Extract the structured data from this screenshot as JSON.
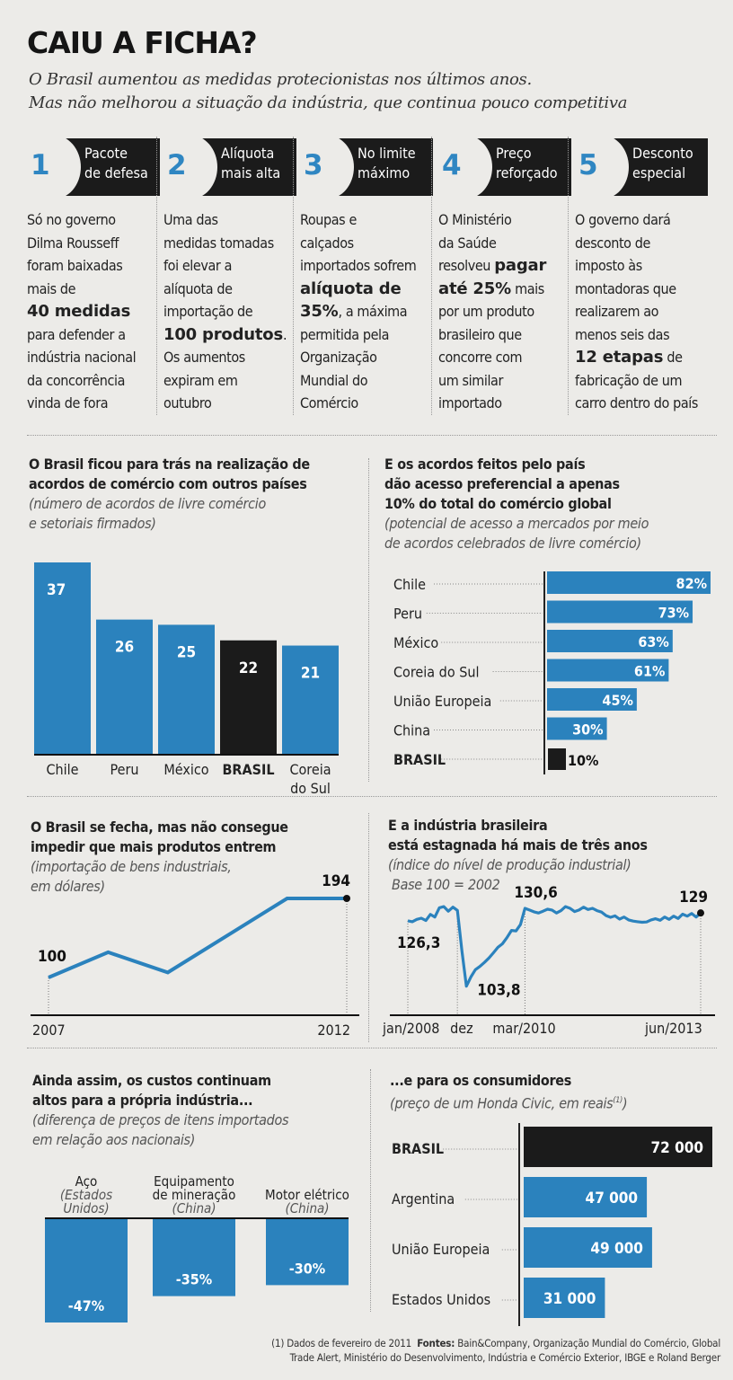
{
  "header": {
    "title": "CAIU A FICHA?",
    "subtitle_line1": "O Brasil aumentou as medidas protecionistas nos últimos anos.",
    "subtitle_line2": "Mas não melhorou a situação da indústria, que continua pouco competitiva"
  },
  "steps": [
    {
      "num": "1",
      "title1": "Pacote",
      "title2": "de defesa",
      "text": [
        "Só no governo",
        "Dilma Rousseff",
        "foram baixadas",
        "mais de",
        "<b>40 medidas</b>",
        "para defender a",
        "indústria nacional",
        "da concorrência",
        "vinda de fora"
      ]
    },
    {
      "num": "2",
      "title1": "Alíquota",
      "title2": "mais alta",
      "text": [
        "Uma das",
        "medidas tomadas",
        "foi elevar a",
        "alíquota de",
        "importação de",
        "<b>100 produtos</b>.",
        "Os aumentos",
        "expiram em",
        "outubro"
      ]
    },
    {
      "num": "3",
      "title1": "No limite",
      "title2": "máximo",
      "text": [
        "Roupas e",
        "calçados",
        "importados sofrem",
        "<b>alíquota de</b>",
        "<b>35%</b>, a máxima",
        "permitida pela",
        "Organização",
        "Mundial do",
        "Comércio"
      ]
    },
    {
      "num": "4",
      "title1": "Preço",
      "title2": "reforçado",
      "text": [
        "O Ministério",
        "da Saúde",
        "resolveu <b>pagar</b>",
        "<b>até 25%</b> mais",
        "por um produto",
        "brasileiro que",
        "concorre com",
        "um similar",
        "importado"
      ]
    },
    {
      "num": "5",
      "title1": "Desconto",
      "title2": "especial",
      "text": [
        "O governo dará",
        "desconto de",
        "imposto às",
        "montadoras que",
        "realizarem ao",
        "menos seis das",
        "<b>12 etapas</b> de",
        "fabricação de um",
        "carro dentro do país"
      ]
    }
  ],
  "colors": {
    "blue": "#2b82bd",
    "dark": "#1b1b1b",
    "background": "#ecebe8"
  },
  "chart_data": [
    {
      "id": "acordos",
      "type": "bar",
      "title": "O Brasil ficou para trás na realização de acordos de comércio com outros países",
      "title_lines": [
        "O Brasil ficou para trás na realização de",
        "acordos de comércio com outros países"
      ],
      "subtitle_lines": [
        "(número de acordos de livre comércio",
        "e setoriais firmados)"
      ],
      "categories": [
        "Chile",
        "Peru",
        "México",
        "BRASIL",
        "Coreia do Sul"
      ],
      "category_lines": [
        [
          "Chile"
        ],
        [
          "Peru"
        ],
        [
          "México"
        ],
        [
          "BRASIL"
        ],
        [
          "Coreia",
          "do Sul"
        ]
      ],
      "values": [
        37,
        26,
        25,
        22,
        21
      ],
      "highlight": "BRASIL",
      "ylim": [
        0,
        37
      ]
    },
    {
      "id": "acesso",
      "type": "bar",
      "orientation": "horizontal",
      "title": "E os acordos feitos pelo país dão acesso preferencial a apenas 10% do total do comércio global",
      "title_lines": [
        "E os acordos feitos pelo país",
        "dão acesso preferencial a apenas",
        "10% do total do comércio global"
      ],
      "subtitle_lines": [
        "(potencial de acesso a mercados por meio",
        "de acordos celebrados de livre comércio)"
      ],
      "categories": [
        "Chile",
        "Peru",
        "México",
        "Coreia do Sul",
        "União Europeia",
        "China",
        "BRASIL"
      ],
      "values": [
        82,
        73,
        63,
        61,
        45,
        30,
        10
      ],
      "unit": "%",
      "highlight": "BRASIL",
      "xlim": [
        0,
        82
      ]
    },
    {
      "id": "importacao",
      "type": "line",
      "title": "O Brasil se fecha, mas não consegue impedir que mais produtos entrem",
      "title_lines": [
        "O Brasil se fecha, mas não consegue",
        "impedir que mais produtos entrem"
      ],
      "subtitle_lines": [
        "(importação de bens industriais,",
        "em dólares)"
      ],
      "x": [
        2007,
        2008,
        2009,
        2010,
        2011,
        2012
      ],
      "values": [
        100,
        130,
        106,
        150,
        194,
        194
      ],
      "labeled_points": [
        {
          "x": 2007,
          "label": "100"
        },
        {
          "x": 2012,
          "label": "194"
        }
      ],
      "x_tick_labels": [
        "2007",
        "2012"
      ],
      "ylim": [
        80,
        200
      ]
    },
    {
      "id": "producao",
      "type": "line",
      "title": "E a indústria brasileira está estagnada há mais de três anos",
      "title_lines": [
        "E a indústria brasileira",
        "está estagnada há mais de três anos"
      ],
      "subtitle_lines": [
        "(índice do nível de produção industrial)",
        "Base 100 = 2002"
      ],
      "x_tick_labels": [
        "jan/2008",
        "dez",
        "mar/2010",
        "jun/2013"
      ],
      "x_tick_index": [
        0,
        11,
        26,
        65
      ],
      "values": [
        126.3,
        126.0,
        126.8,
        127.2,
        126.4,
        128.5,
        127.6,
        130.8,
        131.2,
        129.6,
        131.0,
        129.9,
        116.0,
        103.8,
        107.0,
        109.5,
        110.6,
        112.0,
        113.5,
        115.3,
        117.2,
        118.4,
        120.5,
        123.0,
        122.8,
        125.0,
        130.6,
        130.0,
        129.4,
        129.0,
        129.6,
        130.3,
        130.0,
        129.0,
        129.8,
        131.2,
        130.6,
        129.5,
        130.0,
        131.0,
        130.2,
        130.6,
        129.8,
        129.3,
        128.1,
        127.5,
        128.0,
        126.9,
        127.6,
        126.6,
        126.2,
        126.0,
        125.8,
        125.9,
        126.6,
        127.0,
        126.5,
        127.6,
        126.8,
        127.9,
        127.1,
        128.6,
        127.9,
        128.8,
        127.6,
        129.0
      ],
      "labeled_points": [
        {
          "index": 0,
          "label": "126,3"
        },
        {
          "index": 13,
          "label": "103,8"
        },
        {
          "index": 26,
          "label": "130,6"
        },
        {
          "index": 65,
          "label": "129"
        }
      ],
      "ylim": [
        100,
        134
      ]
    },
    {
      "id": "custos",
      "type": "bar",
      "title": "Ainda assim, os custos continuam altos para a própria indústria...",
      "title_lines": [
        "Ainda assim, os custos continuam",
        "altos para a própria indústria..."
      ],
      "subtitle_lines": [
        "(diferença de preços de itens importados",
        "em relação aos nacionais)"
      ],
      "categories": [
        "Aço (Estados Unidos)",
        "Equipamento de mineração (China)",
        "Motor elétrico (China)"
      ],
      "category_lines": [
        {
          "main": [
            "Aço"
          ],
          "sub": [
            "(Estados",
            "Unidos)"
          ]
        },
        {
          "main": [
            "Equipamento",
            "de mineração"
          ],
          "sub": [
            "(China)"
          ]
        },
        {
          "main": [
            "Motor elétrico"
          ],
          "sub": [
            "(China)"
          ]
        }
      ],
      "values": [
        -47,
        -35,
        -30
      ],
      "unit": "%",
      "ylim": [
        -47,
        0
      ]
    },
    {
      "id": "civic",
      "type": "bar",
      "orientation": "horizontal",
      "title": "...e para os consumidores",
      "title_lines": [
        "...e para os consumidores"
      ],
      "subtitle_lines": [
        "(preço de um Honda Civic, em reais",
        "(1)",
        ")"
      ],
      "categories": [
        "BRASIL",
        "Argentina",
        "União Europeia",
        "Estados Unidos"
      ],
      "values": [
        72000,
        47000,
        49000,
        31000
      ],
      "value_labels": [
        "72 000",
        "47 000",
        "49 000",
        "31 000"
      ],
      "highlight": "BRASIL",
      "xlim": [
        0,
        72000
      ]
    }
  ],
  "footnote": {
    "note": "(1) Dados de fevereiro de 2011",
    "sources_label": "Fontes:",
    "sources_line1": "Bain&Company, Organização Mundial do Comércio, Global",
    "sources_line2": "Trade Alert, Ministério do Desenvolvimento, Indústria e Comércio Exterior, IBGE e Roland Berger"
  }
}
